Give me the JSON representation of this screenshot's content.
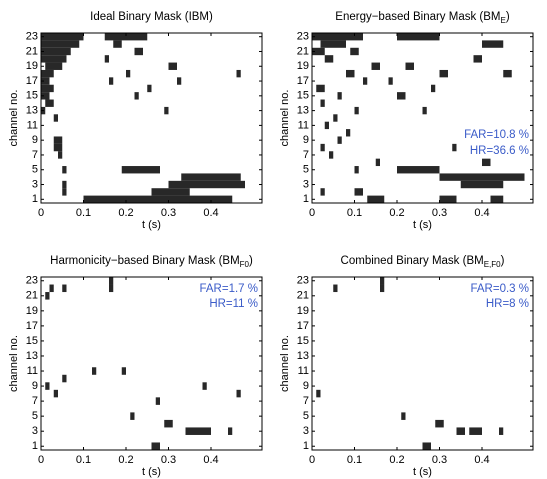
{
  "chart_data": [
    {
      "type": "heatmap",
      "title": [
        "Ideal Binary Mask (IBM)"
      ],
      "xlabel": "t (s)",
      "ylabel": "channel no.",
      "xlim": [
        0,
        0.52
      ],
      "ylim": [
        0.5,
        23.5
      ],
      "xticks": [
        0,
        0.1,
        0.2,
        0.3,
        0.4
      ],
      "yticks": [
        1,
        3,
        5,
        7,
        9,
        11,
        13,
        15,
        17,
        19,
        21,
        23
      ],
      "mask": [
        [
          23,
          0,
          0.1
        ],
        [
          22,
          0,
          0.09
        ],
        [
          21,
          0,
          0.07
        ],
        [
          20,
          0,
          0.06
        ],
        [
          19,
          0.01,
          0.05
        ],
        [
          18,
          0,
          0.03
        ],
        [
          17,
          0,
          0.02
        ],
        [
          16,
          0,
          0.03
        ],
        [
          15,
          0,
          0.02
        ],
        [
          14,
          0.01,
          0.03
        ],
        [
          13,
          0,
          0.01
        ],
        [
          12,
          0.03,
          0.04
        ],
        [
          9,
          0.03,
          0.05
        ],
        [
          8,
          0.03,
          0.05
        ],
        [
          7,
          0.04,
          0.05
        ],
        [
          5,
          0.05,
          0.06
        ],
        [
          3,
          0.05,
          0.06
        ],
        [
          2,
          0.05,
          0.06
        ],
        [
          23,
          0.15,
          0.25
        ],
        [
          22,
          0.17,
          0.19
        ],
        [
          21,
          0.22,
          0.24
        ],
        [
          20,
          0.15,
          0.16
        ],
        [
          19,
          0.3,
          0.32
        ],
        [
          18,
          0.2,
          0.21
        ],
        [
          18,
          0.46,
          0.47
        ],
        [
          17,
          0.16,
          0.17
        ],
        [
          17,
          0.32,
          0.33
        ],
        [
          16,
          0.25,
          0.26
        ],
        [
          15,
          0.22,
          0.23
        ],
        [
          13,
          0.29,
          0.3
        ],
        [
          5,
          0.19,
          0.28
        ],
        [
          4,
          0.33,
          0.47
        ],
        [
          3,
          0.3,
          0.48
        ],
        [
          2,
          0.26,
          0.35
        ],
        [
          1,
          0.1,
          0.45
        ]
      ],
      "annotations": []
    },
    {
      "type": "heatmap",
      "title": [
        "Energy−based Binary Mask (BM",
        "E",
        ")"
      ],
      "xlabel": "t (s)",
      "ylabel": "channel no.",
      "xlim": [
        0,
        0.52
      ],
      "ylim": [
        0.5,
        23.5
      ],
      "xticks": [
        0,
        0.1,
        0.2,
        0.3,
        0.4
      ],
      "yticks": [
        1,
        3,
        5,
        7,
        9,
        11,
        13,
        15,
        17,
        19,
        21,
        23
      ],
      "mask": [
        [
          23,
          0,
          0.12
        ],
        [
          23,
          0.2,
          0.3
        ],
        [
          22,
          0.02,
          0.08
        ],
        [
          22,
          0.4,
          0.45
        ],
        [
          21,
          0,
          0.03
        ],
        [
          21,
          0.09,
          0.11
        ],
        [
          20,
          0.03,
          0.05
        ],
        [
          20,
          0.38,
          0.4
        ],
        [
          19,
          0.14,
          0.16
        ],
        [
          19,
          0.22,
          0.24
        ],
        [
          18,
          0.08,
          0.1
        ],
        [
          18,
          0.3,
          0.32
        ],
        [
          18,
          0.45,
          0.47
        ],
        [
          17,
          0.12,
          0.13
        ],
        [
          17,
          0.18,
          0.19
        ],
        [
          16,
          0.01,
          0.03
        ],
        [
          16,
          0.28,
          0.29
        ],
        [
          15,
          0.06,
          0.07
        ],
        [
          15,
          0.2,
          0.22
        ],
        [
          14,
          0.02,
          0.03
        ],
        [
          13,
          0.1,
          0.11
        ],
        [
          13,
          0.26,
          0.27
        ],
        [
          12,
          0.05,
          0.06
        ],
        [
          11,
          0.03,
          0.04
        ],
        [
          10,
          0.08,
          0.09
        ],
        [
          9,
          0.06,
          0.07
        ],
        [
          8,
          0.02,
          0.03
        ],
        [
          8,
          0.33,
          0.34
        ],
        [
          7,
          0.04,
          0.05
        ],
        [
          6,
          0.15,
          0.16
        ],
        [
          6,
          0.4,
          0.42
        ],
        [
          5,
          0.1,
          0.11
        ],
        [
          5,
          0.2,
          0.3
        ],
        [
          4,
          0.3,
          0.5
        ],
        [
          3,
          0.35,
          0.45
        ],
        [
          2,
          0.02,
          0.03
        ],
        [
          2,
          0.1,
          0.12
        ],
        [
          1,
          0.13,
          0.17
        ],
        [
          1,
          0.3,
          0.34
        ],
        [
          1,
          0.42,
          0.45
        ]
      ],
      "annotations": [
        "FAR=10.8 %",
        "HR=36.6 %"
      ]
    },
    {
      "type": "heatmap",
      "title": [
        "Harmonicity−based Binary Mask (BM",
        "F0",
        ")"
      ],
      "xlabel": "t (s)",
      "ylabel": "channel no.",
      "xlim": [
        0,
        0.52
      ],
      "ylim": [
        0.5,
        23.5
      ],
      "xticks": [
        0,
        0.1,
        0.2,
        0.3,
        0.4
      ],
      "yticks": [
        1,
        3,
        5,
        7,
        9,
        11,
        13,
        15,
        17,
        19,
        21,
        23
      ],
      "mask": [
        [
          22,
          0.02,
          0.03
        ],
        [
          21,
          0.01,
          0.02
        ],
        [
          22,
          0.05,
          0.06
        ],
        [
          23,
          0.16,
          0.17
        ],
        [
          22,
          0.16,
          0.17
        ],
        [
          11,
          0.12,
          0.13
        ],
        [
          11,
          0.19,
          0.2
        ],
        [
          10,
          0.05,
          0.06
        ],
        [
          9,
          0.01,
          0.02
        ],
        [
          9,
          0.38,
          0.39
        ],
        [
          8,
          0.03,
          0.04
        ],
        [
          8,
          0.46,
          0.47
        ],
        [
          7,
          0.27,
          0.28
        ],
        [
          5,
          0.21,
          0.22
        ],
        [
          4,
          0.29,
          0.31
        ],
        [
          3,
          0.34,
          0.4
        ],
        [
          3,
          0.44,
          0.45
        ],
        [
          1,
          0.26,
          0.28
        ]
      ],
      "annotations": [
        "FAR=1.7 %",
        "HR=11 %"
      ]
    },
    {
      "type": "heatmap",
      "title": [
        "Combined Binary Mask (BM",
        "E,F0",
        ")"
      ],
      "xlabel": "t (s)",
      "ylabel": "channel no.",
      "xlim": [
        0,
        0.52
      ],
      "ylim": [
        0.5,
        23.5
      ],
      "xticks": [
        0,
        0.1,
        0.2,
        0.3,
        0.4
      ],
      "yticks": [
        1,
        3,
        5,
        7,
        9,
        11,
        13,
        15,
        17,
        19,
        21,
        23
      ],
      "mask": [
        [
          22,
          0.05,
          0.06
        ],
        [
          23,
          0.16,
          0.17
        ],
        [
          22,
          0.16,
          0.17
        ],
        [
          8,
          0.01,
          0.02
        ],
        [
          5,
          0.21,
          0.22
        ],
        [
          4,
          0.29,
          0.31
        ],
        [
          3,
          0.34,
          0.36
        ],
        [
          3,
          0.37,
          0.4
        ],
        [
          3,
          0.44,
          0.45
        ],
        [
          1,
          0.26,
          0.28
        ]
      ],
      "annotations": [
        "FAR=0.3 %",
        "HR=8 %"
      ]
    }
  ]
}
